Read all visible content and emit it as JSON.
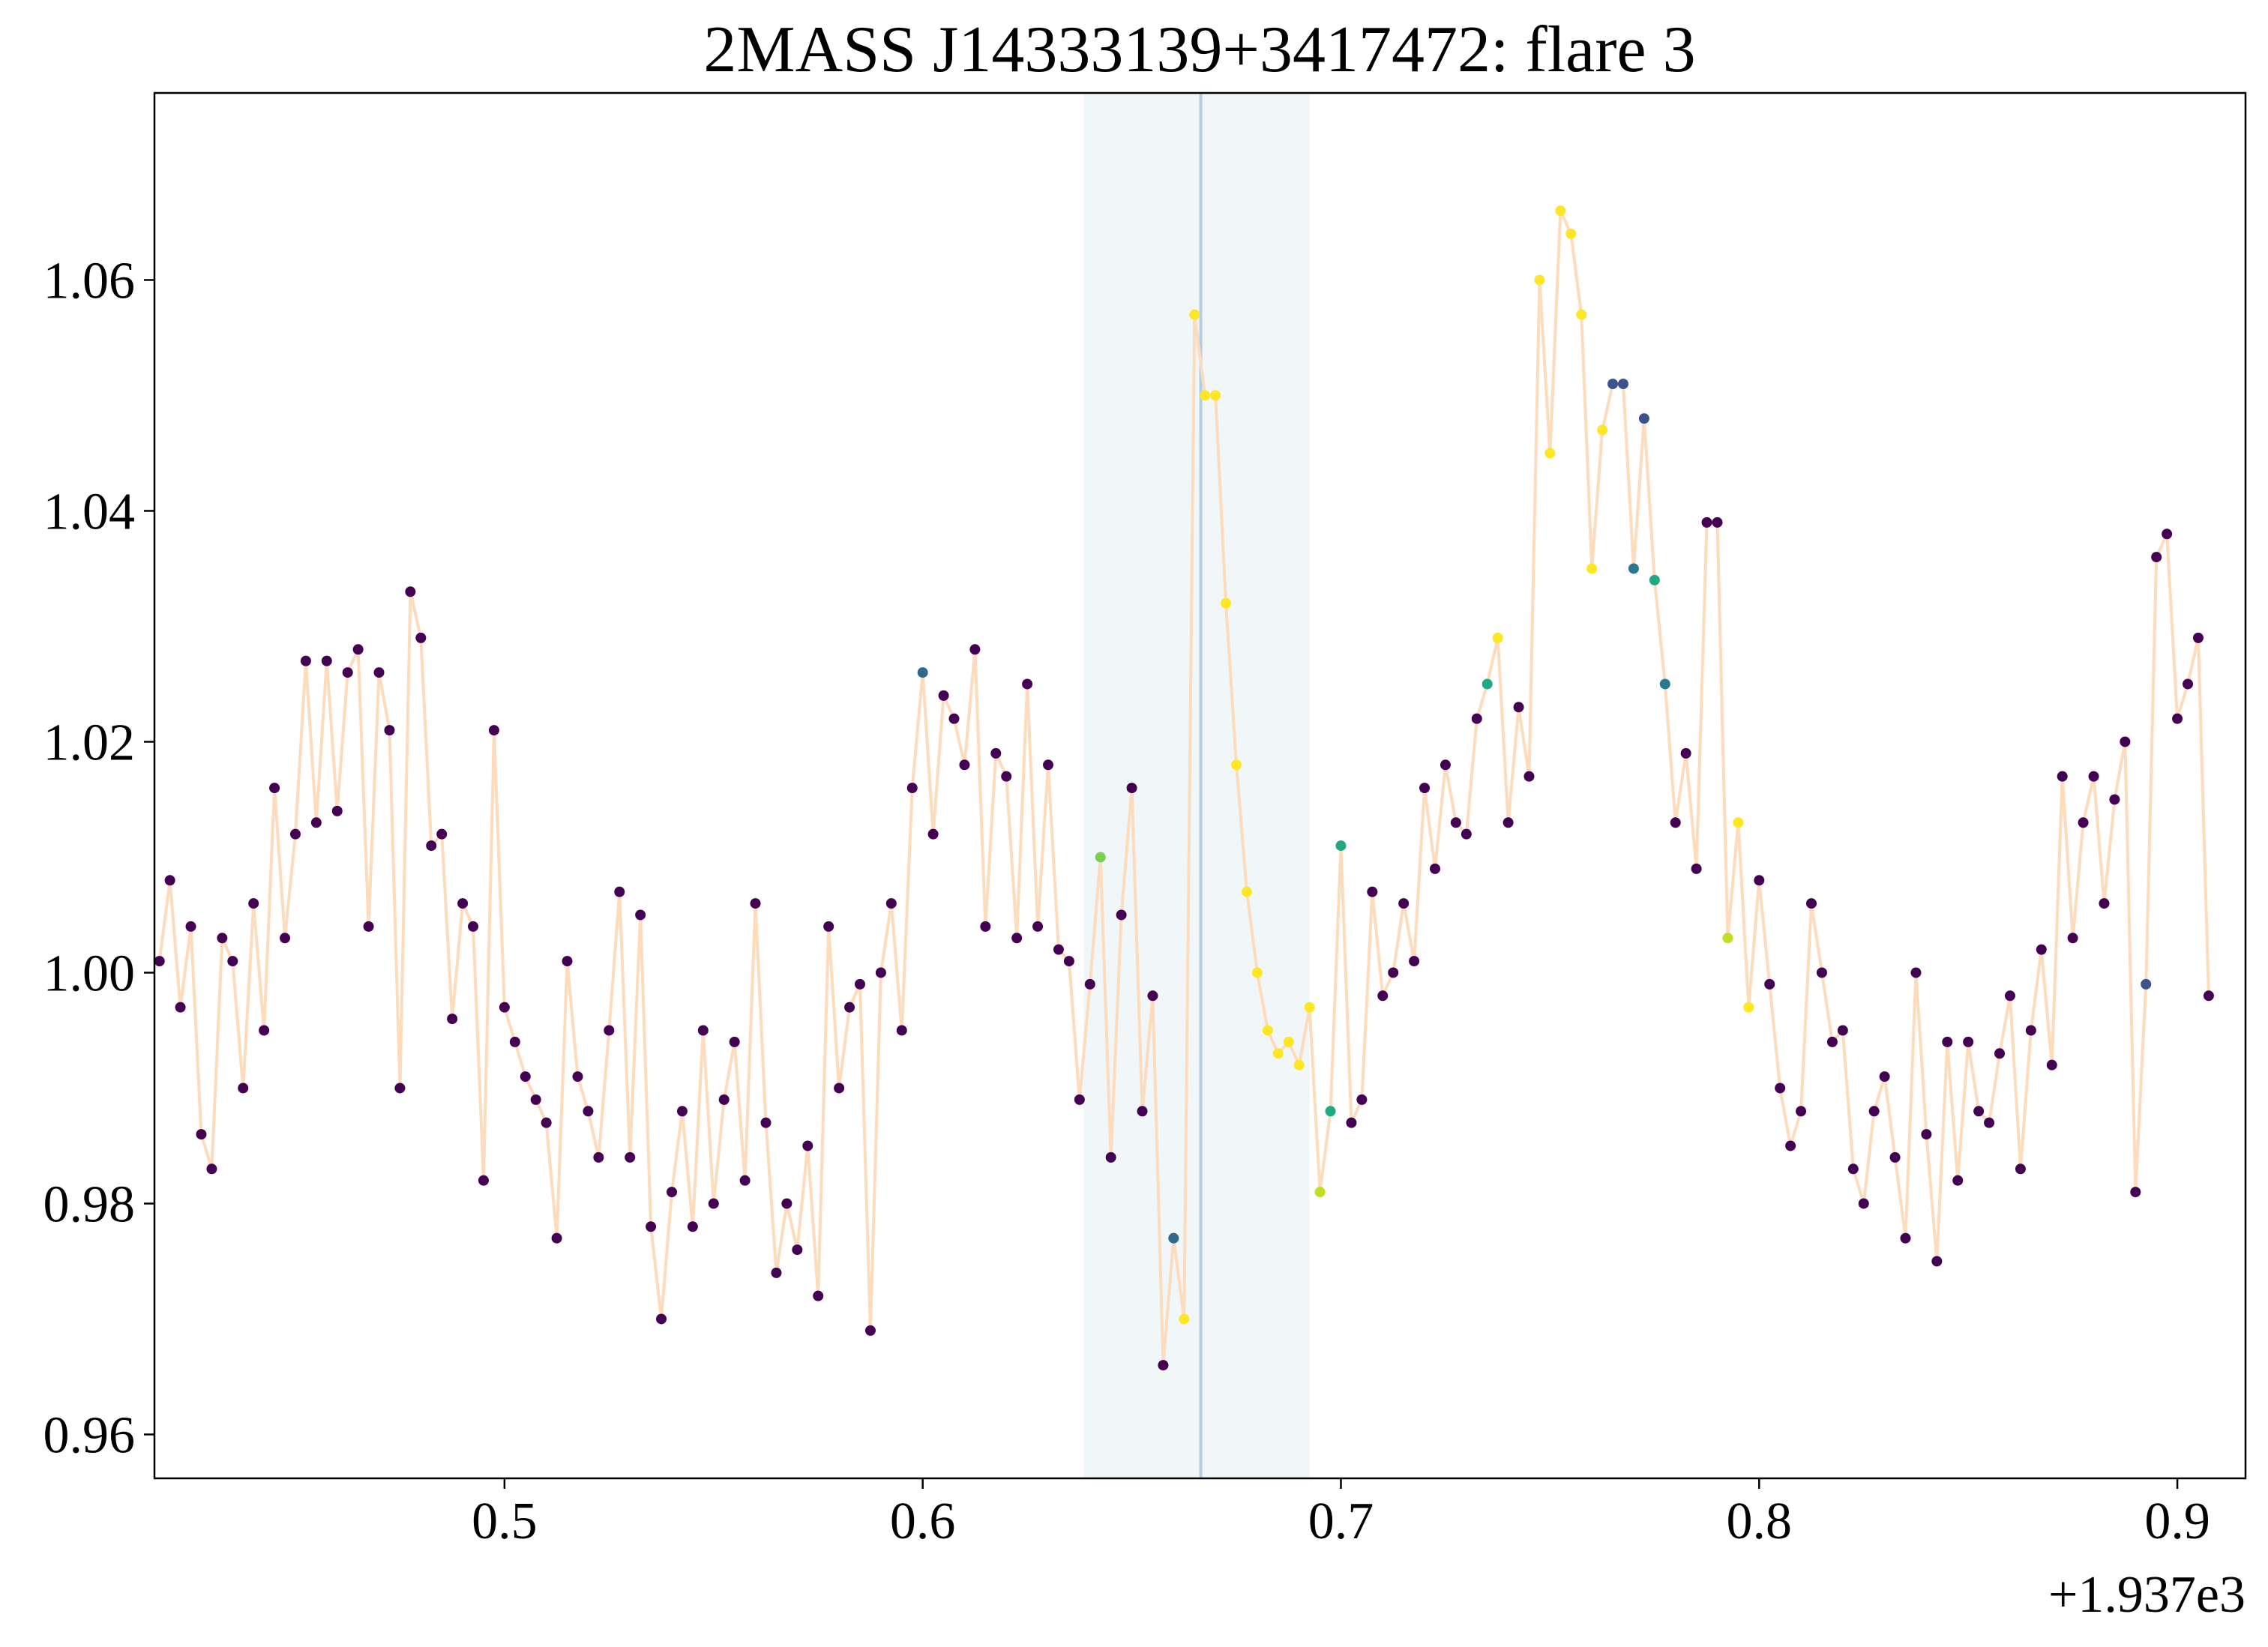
{
  "chart_data": {
    "type": "scatter",
    "title": "2MASS J14333139+3417472: flare 3",
    "x_offset_label": "+1.937e3",
    "xlim": [
      0.4163,
      0.9163
    ],
    "ylim": [
      0.9562,
      1.0762
    ],
    "xticks": [
      0.5,
      0.6,
      0.7,
      0.8,
      0.9
    ],
    "yticks": [
      0.96,
      0.98,
      {
        "value": 1,
        "label": "1.00"
      },
      1.02,
      1.04,
      1.06
    ],
    "span": [
      0.6385,
      0.6925
    ],
    "span_color": "#f1f7f9",
    "vline": 0.6665,
    "vline_color": "#b3cde3",
    "x": [
      0.4175,
      0.42,
      0.4225,
      0.425,
      0.4275,
      0.43,
      0.4325,
      0.435,
      0.4375,
      0.44,
      0.4425,
      0.445,
      0.4475,
      0.45,
      0.4525,
      0.455,
      0.4575,
      0.46,
      0.4625,
      0.465,
      0.4675,
      0.47,
      0.4725,
      0.475,
      0.4775,
      0.48,
      0.4825,
      0.485,
      0.4875,
      0.49,
      0.4925,
      0.495,
      0.4975,
      0.5,
      0.5025,
      0.505,
      0.5075,
      0.51,
      0.5125,
      0.515,
      0.5175,
      0.52,
      0.5225,
      0.525,
      0.5275,
      0.53,
      0.5325,
      0.535,
      0.5375,
      0.54,
      0.5425,
      0.545,
      0.5475,
      0.55,
      0.5525,
      0.555,
      0.5575,
      0.56,
      0.5625,
      0.565,
      0.5675,
      0.57,
      0.5725,
      0.575,
      0.5775,
      0.58,
      0.5825,
      0.585,
      0.5875,
      0.59,
      0.5925,
      0.595,
      0.5975,
      0.6,
      0.6025,
      0.605,
      0.6075,
      0.61,
      0.6125,
      0.615,
      0.6175,
      0.62,
      0.6225,
      0.625,
      0.6275,
      0.63,
      0.6325,
      0.635,
      0.6375,
      0.64,
      0.6425,
      0.645,
      0.6475,
      0.65,
      0.6525,
      0.655,
      0.6575,
      0.66,
      0.6625,
      0.665,
      0.6675,
      0.67,
      0.6725,
      0.675,
      0.6775,
      0.68,
      0.6825,
      0.685,
      0.6875,
      0.69,
      0.6925,
      0.695,
      0.6975,
      0.7,
      0.7025,
      0.705,
      0.7075,
      0.71,
      0.7125,
      0.715,
      0.7175,
      0.72,
      0.7225,
      0.725,
      0.7275,
      0.73,
      0.7325,
      0.735,
      0.7375,
      0.74,
      0.7425,
      0.745,
      0.7475,
      0.75,
      0.7525,
      0.755,
      0.7575,
      0.76,
      0.7625,
      0.765,
      0.7675,
      0.77,
      0.7725,
      0.775,
      0.7775,
      0.78,
      0.7825,
      0.785,
      0.7875,
      0.79,
      0.7925,
      0.795,
      0.7975,
      0.8,
      0.8025,
      0.805,
      0.8075,
      0.81,
      0.8125,
      0.815,
      0.8175,
      0.82,
      0.8225,
      0.825,
      0.8275,
      0.83,
      0.8325,
      0.835,
      0.8375,
      0.84,
      0.8425,
      0.845,
      0.8475,
      0.85,
      0.8525,
      0.855,
      0.8575,
      0.86,
      0.8625,
      0.865,
      0.8675,
      0.87,
      0.8725,
      0.875,
      0.8775,
      0.88,
      0.8825,
      0.885,
      0.8875,
      0.89,
      0.8925,
      0.895,
      0.8975,
      0.9,
      0.9025,
      0.905,
      0.9075,
      0.91,
      0.9125,
      0.915
    ],
    "series": [
      {
        "line_color": "#fddbbd",
        "values": [
          1.001,
          1.008,
          0.997,
          1.004,
          0.986,
          0.983,
          1.003,
          1.001,
          0.99,
          1.006,
          0.995,
          1.016,
          1.003,
          1.012,
          1.027,
          1.013,
          1.027,
          1.014,
          1.026,
          1.028,
          1.004,
          1.026,
          1.021,
          0.99,
          1.033,
          1.029,
          1.011,
          1.012,
          0.996,
          1.006,
          1.004,
          0.982,
          1.021,
          0.997,
          0.994,
          0.991,
          0.989,
          0.987,
          0.977,
          1.001,
          0.991,
          0.988,
          0.984,
          0.995,
          1.007,
          0.984,
          1.005,
          0.978,
          0.97,
          0.981,
          0.988,
          0.978,
          0.995,
          0.98,
          0.989,
          0.994,
          0.982,
          1.006,
          0.987,
          0.974,
          0.98,
          0.976,
          0.985,
          0.972,
          1.004,
          0.99,
          0.997,
          0.999,
          0.969,
          1.0,
          1.006,
          0.995,
          1.016,
          1.026,
          1.012,
          1.024,
          1.022,
          1.018,
          1.028,
          1.004,
          1.019,
          1.017,
          1.003,
          1.025,
          1.004,
          1.018,
          1.002,
          1.001,
          0.989,
          0.999,
          1.01,
          0.984,
          1.005,
          1.016,
          0.988,
          0.998,
          0.966,
          0.977,
          0.97,
          1.057,
          1.05,
          1.05,
          1.032,
          1.018,
          1.007,
          1.0,
          0.995,
          0.993,
          0.994,
          0.992,
          0.997,
          0.981,
          0.988,
          1.011,
          0.987,
          0.989,
          1.007,
          0.998,
          1.0,
          1.006,
          1.001,
          1.016,
          1.009,
          1.018,
          1.013,
          1.012,
          1.022,
          1.025,
          1.029,
          1.013,
          1.023,
          1.017,
          1.06,
          1.045,
          1.066,
          1.064,
          1.057,
          1.035,
          1.047,
          1.051,
          1.051,
          1.035,
          1.048,
          1.034,
          1.025,
          1.013,
          1.019,
          1.009,
          1.039,
          1.039,
          1.003,
          1.013,
          0.997,
          1.008,
          0.999,
          0.99,
          0.985,
          0.988,
          1.006,
          1.0,
          0.994,
          0.995,
          0.983,
          0.98,
          0.988,
          0.991,
          0.984,
          0.977,
          1.0,
          0.986,
          0.975,
          0.994,
          0.982,
          0.994,
          0.988,
          0.987,
          0.993,
          0.998,
          0.983,
          0.995,
          1.002,
          0.992,
          1.017,
          1.003,
          1.013,
          1.017,
          1.006,
          1.015,
          1.02,
          0.981,
          0.999,
          1.036,
          1.038,
          1.022,
          1.025,
          1.029,
          0.998
        ],
        "colors": [
          "#440154",
          "#440154",
          "#440154",
          "#440154",
          "#440154",
          "#440154",
          "#440154",
          "#440154",
          "#440154",
          "#440154",
          "#440154",
          "#440154",
          "#440154",
          "#440154",
          "#440154",
          "#440154",
          "#440154",
          "#440154",
          "#440154",
          "#440154",
          "#440154",
          "#440154",
          "#440154",
          "#440154",
          "#440154",
          "#440154",
          "#440154",
          "#440154",
          "#440154",
          "#440154",
          "#440154",
          "#440154",
          "#440154",
          "#440154",
          "#440154",
          "#440154",
          "#440154",
          "#440154",
          "#440154",
          "#440154",
          "#440154",
          "#440154",
          "#440154",
          "#440154",
          "#440154",
          "#440154",
          "#440154",
          "#440154",
          "#440154",
          "#440154",
          "#440154",
          "#440154",
          "#440154",
          "#440154",
          "#440154",
          "#440154",
          "#440154",
          "#440154",
          "#440154",
          "#440154",
          "#440154",
          "#440154",
          "#440154",
          "#440154",
          "#440154",
          "#440154",
          "#440154",
          "#440154",
          "#440154",
          "#440154",
          "#440154",
          "#440154",
          "#440154",
          "#31688e",
          "#440154",
          "#440154",
          "#440154",
          "#440154",
          "#440154",
          "#440154",
          "#440154",
          "#440154",
          "#440154",
          "#440154",
          "#440154",
          "#440154",
          "#440154",
          "#440154",
          "#440154",
          "#440154",
          "#7ad151",
          "#440154",
          "#440154",
          "#440154",
          "#440154",
          "#440154",
          "#440154",
          "#31688e",
          "#fde725",
          "#fde725",
          "#fde725",
          "#fde725",
          "#fde725",
          "#fde725",
          "#fde725",
          "#fde725",
          "#fde725",
          "#fde725",
          "#fde725",
          "#fde725",
          "#fde725",
          "#bddf26",
          "#22a884",
          "#22a884",
          "#440154",
          "#440154",
          "#440154",
          "#440154",
          "#440154",
          "#440154",
          "#440154",
          "#440154",
          "#440154",
          "#440154",
          "#440154",
          "#440154",
          "#440154",
          "#22a884",
          "#fde725",
          "#440154",
          "#440154",
          "#440154",
          "#fde725",
          "#fde725",
          "#fde725",
          "#fde725",
          "#fde725",
          "#fde725",
          "#fde725",
          "#3b528b",
          "#3b528b",
          "#2a788e",
          "#3b528b",
          "#22a884",
          "#2a788e",
          "#440154",
          "#440154",
          "#440154",
          "#440154",
          "#440154",
          "#bddf26",
          "#fde725",
          "#fde725",
          "#440154",
          "#440154",
          "#440154",
          "#440154",
          "#440154",
          "#440154",
          "#440154",
          "#440154",
          "#440154",
          "#440154",
          "#440154",
          "#440154",
          "#440154",
          "#440154",
          "#440154",
          "#440154",
          "#440154",
          "#440154",
          "#440154",
          "#440154",
          "#440154",
          "#440154",
          "#440154",
          "#440154",
          "#440154",
          "#440154",
          "#440154",
          "#440154",
          "#440154",
          "#440154",
          "#440154",
          "#440154",
          "#440154",
          "#440154",
          "#440154",
          "#440154",
          "#440154",
          "#3b528b",
          "#440154",
          "#440154",
          "#440154",
          "#440154",
          "#440154",
          "#440154",
          "#440154",
          "#440154",
          "#440154"
        ]
      }
    ]
  }
}
